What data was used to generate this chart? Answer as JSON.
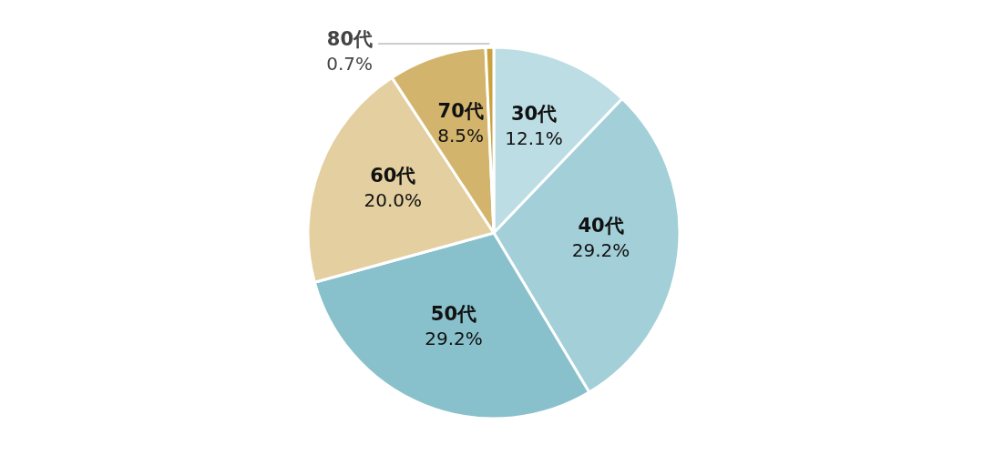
{
  "chart_data": {
    "type": "pie",
    "categories": [
      "30代",
      "40代",
      "50代",
      "60代",
      "70代",
      "80代"
    ],
    "values": [
      12.1,
      29.2,
      29.2,
      20.0,
      8.5,
      0.7
    ],
    "value_labels": [
      "12.1%",
      "29.2%",
      "29.2%",
      "20.0%",
      "8.5%",
      "0.7%"
    ],
    "colors": [
      "#bcdde4",
      "#a2cfd8",
      "#88c1cc",
      "#e3cfa0",
      "#d2b46c",
      "#c9a23f"
    ]
  }
}
